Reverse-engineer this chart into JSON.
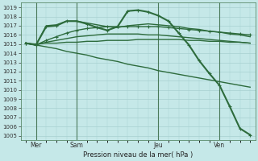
{
  "title": "",
  "xlabel": "Pression niveau de la mer( hPa )",
  "ylabel": "",
  "background_color": "#c5e8e8",
  "grid_color": "#a8d0d0",
  "line_color": "#2d6b3c",
  "ylim": [
    1004.5,
    1019.5
  ],
  "xlim": [
    -0.5,
    22.5
  ],
  "yticks": [
    1005,
    1006,
    1007,
    1008,
    1009,
    1010,
    1011,
    1012,
    1013,
    1014,
    1015,
    1016,
    1017,
    1018,
    1019
  ],
  "day_positions": [
    1,
    5,
    13,
    19
  ],
  "day_labels": [
    "Mer",
    "Sam",
    "Jeu",
    "Ven"
  ],
  "lines": [
    {
      "x": [
        0,
        1,
        2,
        3,
        4,
        5,
        6,
        7,
        8,
        9,
        10,
        11,
        12,
        13,
        14,
        15,
        16,
        17,
        18,
        19,
        20,
        21,
        22
      ],
      "y": [
        1015.1,
        1015.0,
        1015.1,
        1015.1,
        1015.2,
        1015.2,
        1015.3,
        1015.3,
        1015.4,
        1015.4,
        1015.4,
        1015.5,
        1015.5,
        1015.5,
        1015.5,
        1015.5,
        1015.4,
        1015.4,
        1015.3,
        1015.3,
        1015.2,
        1015.2,
        1015.1
      ],
      "marker": false,
      "lw": 1.0
    },
    {
      "x": [
        0,
        1,
        2,
        3,
        4,
        5,
        6,
        7,
        8,
        9,
        10,
        11,
        12,
        13,
        14,
        15,
        16,
        17,
        18,
        19,
        20,
        21,
        22
      ],
      "y": [
        1015.1,
        1014.9,
        1015.2,
        1015.4,
        1015.6,
        1015.8,
        1015.9,
        1016.0,
        1016.1,
        1016.1,
        1016.1,
        1016.1,
        1016.0,
        1016.0,
        1015.9,
        1015.8,
        1015.7,
        1015.6,
        1015.5,
        1015.4,
        1015.3,
        1015.2,
        1015.1
      ],
      "marker": false,
      "lw": 1.0
    },
    {
      "x": [
        0,
        1,
        2,
        3,
        4,
        5,
        6,
        7,
        8,
        9,
        10,
        11,
        12,
        13,
        14,
        15,
        16,
        17,
        18,
        19,
        20,
        21,
        22
      ],
      "y": [
        1015.1,
        1014.9,
        1015.4,
        1015.8,
        1016.2,
        1016.5,
        1016.7,
        1016.8,
        1016.9,
        1016.9,
        1016.9,
        1016.9,
        1016.9,
        1016.9,
        1016.8,
        1016.7,
        1016.6,
        1016.5,
        1016.4,
        1016.3,
        1016.2,
        1016.1,
        1016.0
      ],
      "marker": true,
      "lw": 1.0
    },
    {
      "x": [
        0,
        1,
        2,
        3,
        4,
        5,
        6,
        7,
        8,
        9,
        10,
        11,
        12,
        13,
        14,
        15,
        16,
        17,
        18,
        19,
        20,
        21,
        22
      ],
      "y": [
        1015.1,
        1014.9,
        1017.0,
        1017.1,
        1017.5,
        1017.5,
        1017.3,
        1017.1,
        1016.9,
        1016.8,
        1017.0,
        1017.1,
        1017.2,
        1017.1,
        1017.0,
        1016.9,
        1016.7,
        1016.6,
        1016.4,
        1016.3,
        1016.1,
        1016.0,
        1015.8
      ],
      "marker": false,
      "lw": 1.0
    },
    {
      "x": [
        0,
        1,
        2,
        3,
        4,
        5,
        6,
        7,
        8,
        9,
        10,
        11,
        12,
        13,
        14,
        15,
        16,
        17,
        18,
        19,
        20,
        21,
        22
      ],
      "y": [
        1015.1,
        1014.9,
        1016.9,
        1017.0,
        1017.5,
        1017.5,
        1017.2,
        1016.8,
        1016.5,
        1016.9,
        1018.6,
        1018.7,
        1018.5,
        1018.1,
        1017.5,
        1016.2,
        1014.9,
        1013.2,
        1011.8,
        1010.5,
        1008.2,
        1005.8,
        1005.1
      ],
      "marker": true,
      "lw": 1.5
    },
    {
      "x": [
        0,
        1,
        2,
        3,
        4,
        5,
        6,
        7,
        8,
        9,
        10,
        11,
        12,
        13,
        14,
        15,
        16,
        17,
        18,
        19,
        20,
        21,
        22
      ],
      "y": [
        1015.1,
        1014.9,
        1014.7,
        1014.5,
        1014.2,
        1014.0,
        1013.8,
        1013.5,
        1013.3,
        1013.1,
        1012.8,
        1012.6,
        1012.4,
        1012.1,
        1011.9,
        1011.7,
        1011.5,
        1011.3,
        1011.1,
        1010.9,
        1010.7,
        1010.5,
        1010.3
      ],
      "marker": false,
      "lw": 1.0
    }
  ]
}
